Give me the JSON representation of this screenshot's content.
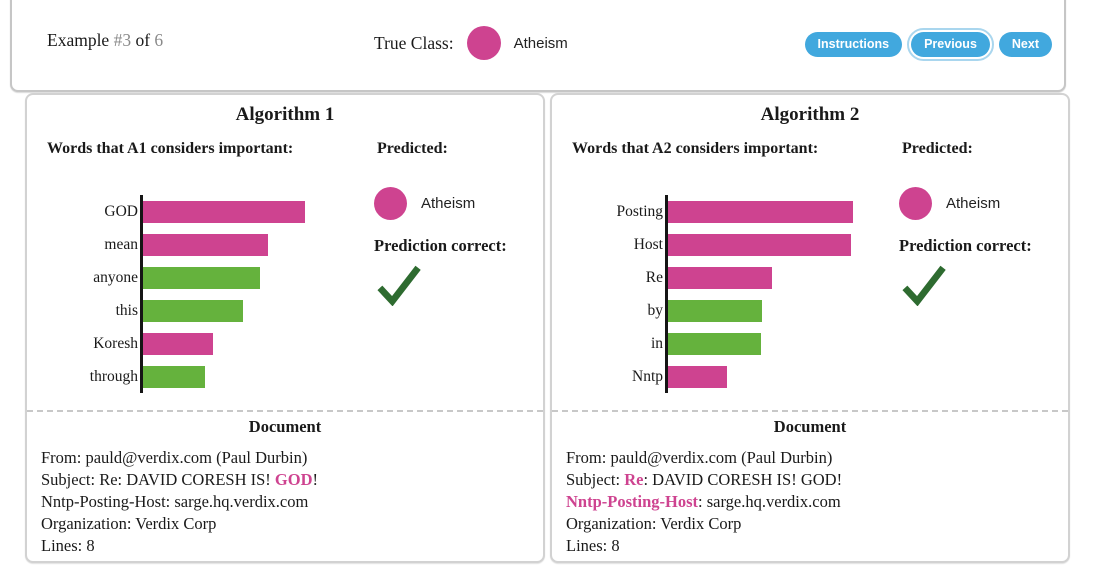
{
  "header": {
    "example_prefix": "Example",
    "example_number": "#3",
    "example_of": "of",
    "example_total": "6",
    "true_class_label": "True Class:",
    "true_class_name": "Atheism",
    "buttons": [
      {
        "label": "Instructions",
        "focused": false
      },
      {
        "label": "Previous",
        "focused": true
      },
      {
        "label": "Next",
        "focused": false
      }
    ]
  },
  "colors": {
    "class_pink": "#ce4390",
    "importance_green": "#65b23d",
    "button_blue": "#41a8de",
    "check_green": "#2e6b30",
    "muted_gray": "#8a8a8a"
  },
  "chart_data": [
    {
      "type": "bar",
      "orientation": "horizontal",
      "title": "Words that A1 considers important:",
      "categories": [
        "GOD",
        "mean",
        "anyone",
        "this",
        "Koresh",
        "through"
      ],
      "values": [
        1.0,
        0.77,
        0.72,
        0.62,
        0.43,
        0.38
      ],
      "colors": [
        "pink",
        "pink",
        "green",
        "green",
        "pink",
        "green"
      ],
      "legend": false,
      "axis": "single-vertical-baseline"
    },
    {
      "type": "bar",
      "orientation": "horizontal",
      "title": "Words that A2 considers important:",
      "categories": [
        "Posting",
        "Host",
        "Re",
        "by",
        "in",
        "Nntp"
      ],
      "values": [
        1.0,
        0.99,
        0.56,
        0.51,
        0.5,
        0.32
      ],
      "colors": [
        "pink",
        "pink",
        "pink",
        "green",
        "green",
        "pink"
      ],
      "legend": false,
      "axis": "single-vertical-baseline"
    }
  ],
  "panels": [
    {
      "title": "Algorithm 1",
      "words_heading": "Words that A1 considers important:",
      "predicted_heading": "Predicted:",
      "predicted_class": "Atheism",
      "prediction_correct_heading": "Prediction correct:",
      "prediction_correct": true,
      "chart_index": 0,
      "document_heading": "Document",
      "document_lines": [
        [
          {
            "t": "From: pauld@verdix.com (Paul Durbin)"
          }
        ],
        [
          {
            "t": "Subject: Re: DAVID CORESH IS! "
          },
          {
            "t": "GOD",
            "hl": true
          },
          {
            "t": "!"
          }
        ],
        [
          {
            "t": "Nntp-Posting-Host: sarge.hq.verdix.com"
          }
        ],
        [
          {
            "t": "Organization: Verdix Corp"
          }
        ],
        [
          {
            "t": "Lines: 8"
          }
        ]
      ]
    },
    {
      "title": "Algorithm 2",
      "words_heading": "Words that A2 considers important:",
      "predicted_heading": "Predicted:",
      "predicted_class": "Atheism",
      "prediction_correct_heading": "Prediction correct:",
      "prediction_correct": true,
      "chart_index": 1,
      "document_heading": "Document",
      "document_lines": [
        [
          {
            "t": "From: pauld@verdix.com (Paul Durbin)"
          }
        ],
        [
          {
            "t": "Subject: "
          },
          {
            "t": "Re",
            "hl": true
          },
          {
            "t": ": DAVID CORESH IS! GOD!"
          }
        ],
        [
          {
            "t": "Nntp-Posting-Host",
            "hl": true
          },
          {
            "t": ": sarge.hq.verdix.com"
          }
        ],
        [
          {
            "t": "Organization: Verdix Corp"
          }
        ],
        [
          {
            "t": "Lines: 8"
          }
        ]
      ]
    }
  ]
}
